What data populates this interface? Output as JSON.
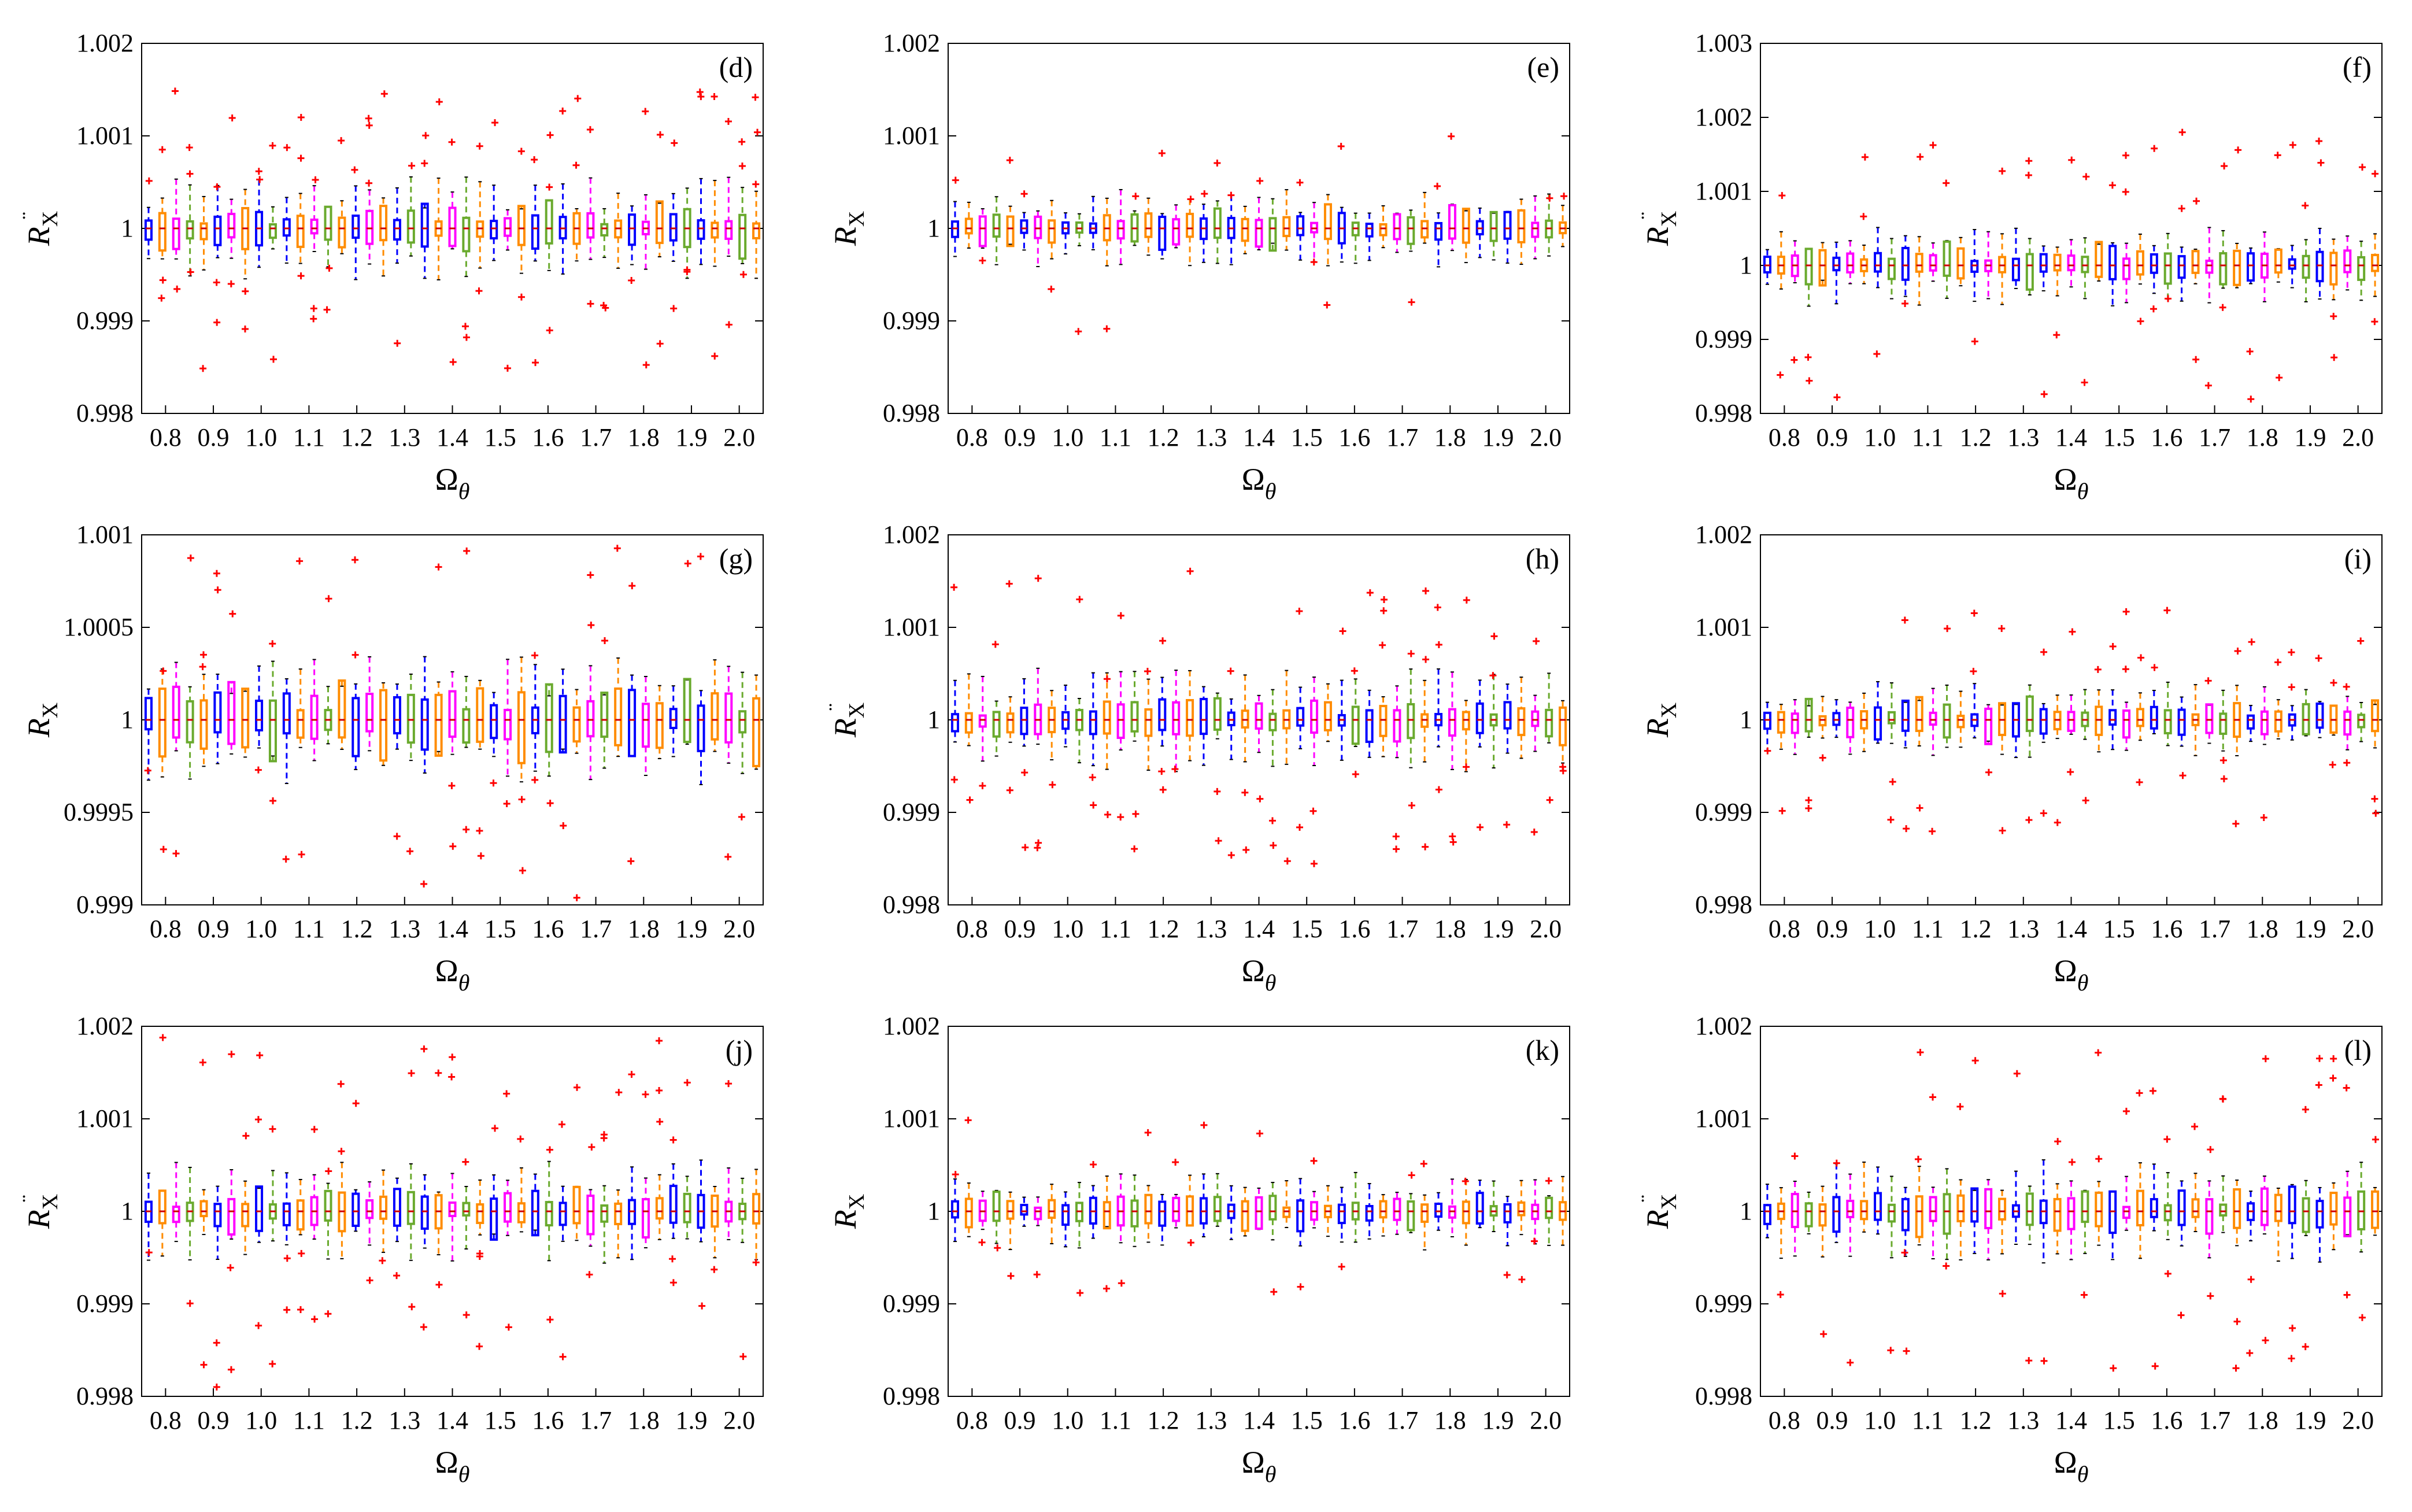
{
  "figure": {
    "x_axis_label": "Ω",
    "x_axis_subscript": "θ",
    "y_axis_symbol": "R",
    "y_axis_subscript": "X",
    "y_axis_accent": "¨",
    "x_tick_labels": [
      "0.8",
      "0.9",
      "1.0",
      "1.1",
      "1.2",
      "1.3",
      "1.4",
      "1.5",
      "1.6",
      "1.7",
      "1.8",
      "1.9",
      "2.0"
    ],
    "box_colors": [
      "#0000ff",
      "#ff8c00",
      "#ff00ff",
      "#6aaa2e",
      "#ff8c00",
      "#0000ff",
      "#ff00ff",
      "#ff8c00",
      "#0000ff",
      "#6aaa2e"
    ],
    "outlier_color": "#ff0000"
  },
  "chart_data": [
    {
      "type": "box",
      "panel": "(d)",
      "title": "(d)",
      "xlabel": "Ω_θ",
      "ylabel": "R_Ẍ",
      "x_range": [
        0.75,
        2.05
      ],
      "ylim": [
        0.998,
        1.002
      ],
      "y_tick_labels": [
        "0.998",
        "0.999",
        "1",
        "1.001",
        "1.002"
      ],
      "y_ticks": [
        0.998,
        0.999,
        1,
        1.001,
        1.002
      ],
      "box_count": 45,
      "median": 1.0,
      "whisker_halfwidth": 0.0004,
      "box_halfwidth": 0.00015,
      "outlier_spread": 0.0011,
      "dots_per_box": 3,
      "seed": 11
    },
    {
      "type": "box",
      "panel": "(e)",
      "title": "(e)",
      "xlabel": "Ω_θ",
      "ylabel": "R_X",
      "x_range": [
        0.75,
        2.05
      ],
      "ylim": [
        0.998,
        1.002
      ],
      "y_tick_labels": [
        "0.998",
        "0.999",
        "1",
        "1.001",
        "1.002"
      ],
      "y_ticks": [
        0.998,
        0.999,
        1,
        1.001,
        1.002
      ],
      "box_count": 45,
      "median": 1.0,
      "whisker_halfwidth": 0.0003,
      "box_halfwidth": 0.00012,
      "outlier_spread": 0.0008,
      "dots_per_box": 1,
      "seed": 23
    },
    {
      "type": "box",
      "panel": "(f)",
      "title": "(f)",
      "xlabel": "Ω_θ",
      "ylabel": "R_Ẍ",
      "x_range": [
        0.75,
        2.05
      ],
      "ylim": [
        0.998,
        1.003
      ],
      "y_tick_labels": [
        "0.998",
        "0.999",
        "1",
        "1.001",
        "1.002",
        "1.003"
      ],
      "y_ticks": [
        0.998,
        0.999,
        1,
        1.001,
        1.002,
        1.003
      ],
      "box_count": 45,
      "median": 1.0,
      "whisker_halfwidth": 0.0004,
      "box_halfwidth": 0.00015,
      "outlier_spread": 0.0014,
      "dots_per_box": 2,
      "seed": 37
    },
    {
      "type": "box",
      "panel": "(g)",
      "title": "(g)",
      "xlabel": "Ω_θ",
      "ylabel": "R_X",
      "x_range": [
        0.75,
        2.05
      ],
      "ylim": [
        0.999,
        1.001
      ],
      "y_tick_labels": [
        "0.999",
        "0.9995",
        "1",
        "1.0005",
        "1.001"
      ],
      "y_ticks": [
        0.999,
        0.9995,
        1,
        1.0005,
        1.001
      ],
      "box_count": 45,
      "median": 1.0,
      "whisker_halfwidth": 0.00025,
      "box_halfwidth": 0.00012,
      "outlier_spread": 0.0007,
      "dots_per_box": 2,
      "seed": 41
    },
    {
      "type": "box",
      "panel": "(h)",
      "title": "(h)",
      "xlabel": "Ω_θ",
      "ylabel": "R_Ẍ",
      "x_range": [
        0.75,
        2.05
      ],
      "ylim": [
        0.998,
        1.002
      ],
      "y_tick_labels": [
        "0.998",
        "0.999",
        "1",
        "1.001",
        "1.002"
      ],
      "y_ticks": [
        0.998,
        0.999,
        1,
        1.001,
        1.002
      ],
      "box_count": 45,
      "median": 1.0,
      "whisker_halfwidth": 0.0004,
      "box_halfwidth": 0.00013,
      "outlier_spread": 0.0012,
      "dots_per_box": 3,
      "seed": 53
    },
    {
      "type": "box",
      "panel": "(i)",
      "title": "(i)",
      "xlabel": "Ω_θ",
      "ylabel": "R_X",
      "x_range": [
        0.75,
        2.05
      ],
      "ylim": [
        0.998,
        1.002
      ],
      "y_tick_labels": [
        "0.998",
        "0.999",
        "1",
        "1.001",
        "1.002"
      ],
      "y_ticks": [
        0.998,
        0.999,
        1,
        1.001,
        1.002
      ],
      "box_count": 45,
      "median": 1.0,
      "whisker_halfwidth": 0.0003,
      "box_halfwidth": 0.00012,
      "outlier_spread": 0.0009,
      "dots_per_box": 2,
      "seed": 67
    },
    {
      "type": "box",
      "panel": "(j)",
      "title": "(j)",
      "xlabel": "Ω_θ",
      "ylabel": "R_Ẍ",
      "x_range": [
        0.75,
        2.05
      ],
      "ylim": [
        0.998,
        1.002
      ],
      "y_tick_labels": [
        "0.998",
        "0.999",
        "1",
        "1.001",
        "1.002"
      ],
      "y_ticks": [
        0.998,
        0.999,
        1,
        1.001,
        1.002
      ],
      "box_count": 45,
      "median": 1.0,
      "whisker_halfwidth": 0.0004,
      "box_halfwidth": 0.00015,
      "outlier_spread": 0.0015,
      "dots_per_box": 3,
      "seed": 79
    },
    {
      "type": "box",
      "panel": "(k)",
      "title": "(k)",
      "xlabel": "Ω_θ",
      "ylabel": "R_X",
      "x_range": [
        0.75,
        2.05
      ],
      "ylim": [
        0.998,
        1.002
      ],
      "y_tick_labels": [
        "0.998",
        "0.999",
        "1",
        "1.001",
        "1.002"
      ],
      "y_ticks": [
        0.998,
        0.999,
        1,
        1.001,
        1.002
      ],
      "box_count": 45,
      "median": 1.0,
      "whisker_halfwidth": 0.0003,
      "box_halfwidth": 0.00012,
      "outlier_spread": 0.0007,
      "dots_per_box": 1,
      "seed": 83
    },
    {
      "type": "box",
      "panel": "(l)",
      "title": "(l)",
      "xlabel": "Ω_θ",
      "ylabel": "R_Ẍ",
      "x_range": [
        0.75,
        2.05
      ],
      "ylim": [
        0.998,
        1.002
      ],
      "y_tick_labels": [
        "0.998",
        "0.999",
        "1",
        "1.001",
        "1.002"
      ],
      "y_ticks": [
        0.998,
        0.999,
        1,
        1.001,
        1.002
      ],
      "box_count": 45,
      "median": 1.0,
      "whisker_halfwidth": 0.0004,
      "box_halfwidth": 0.00014,
      "outlier_spread": 0.0013,
      "dots_per_box": 2,
      "seed": 97
    }
  ]
}
